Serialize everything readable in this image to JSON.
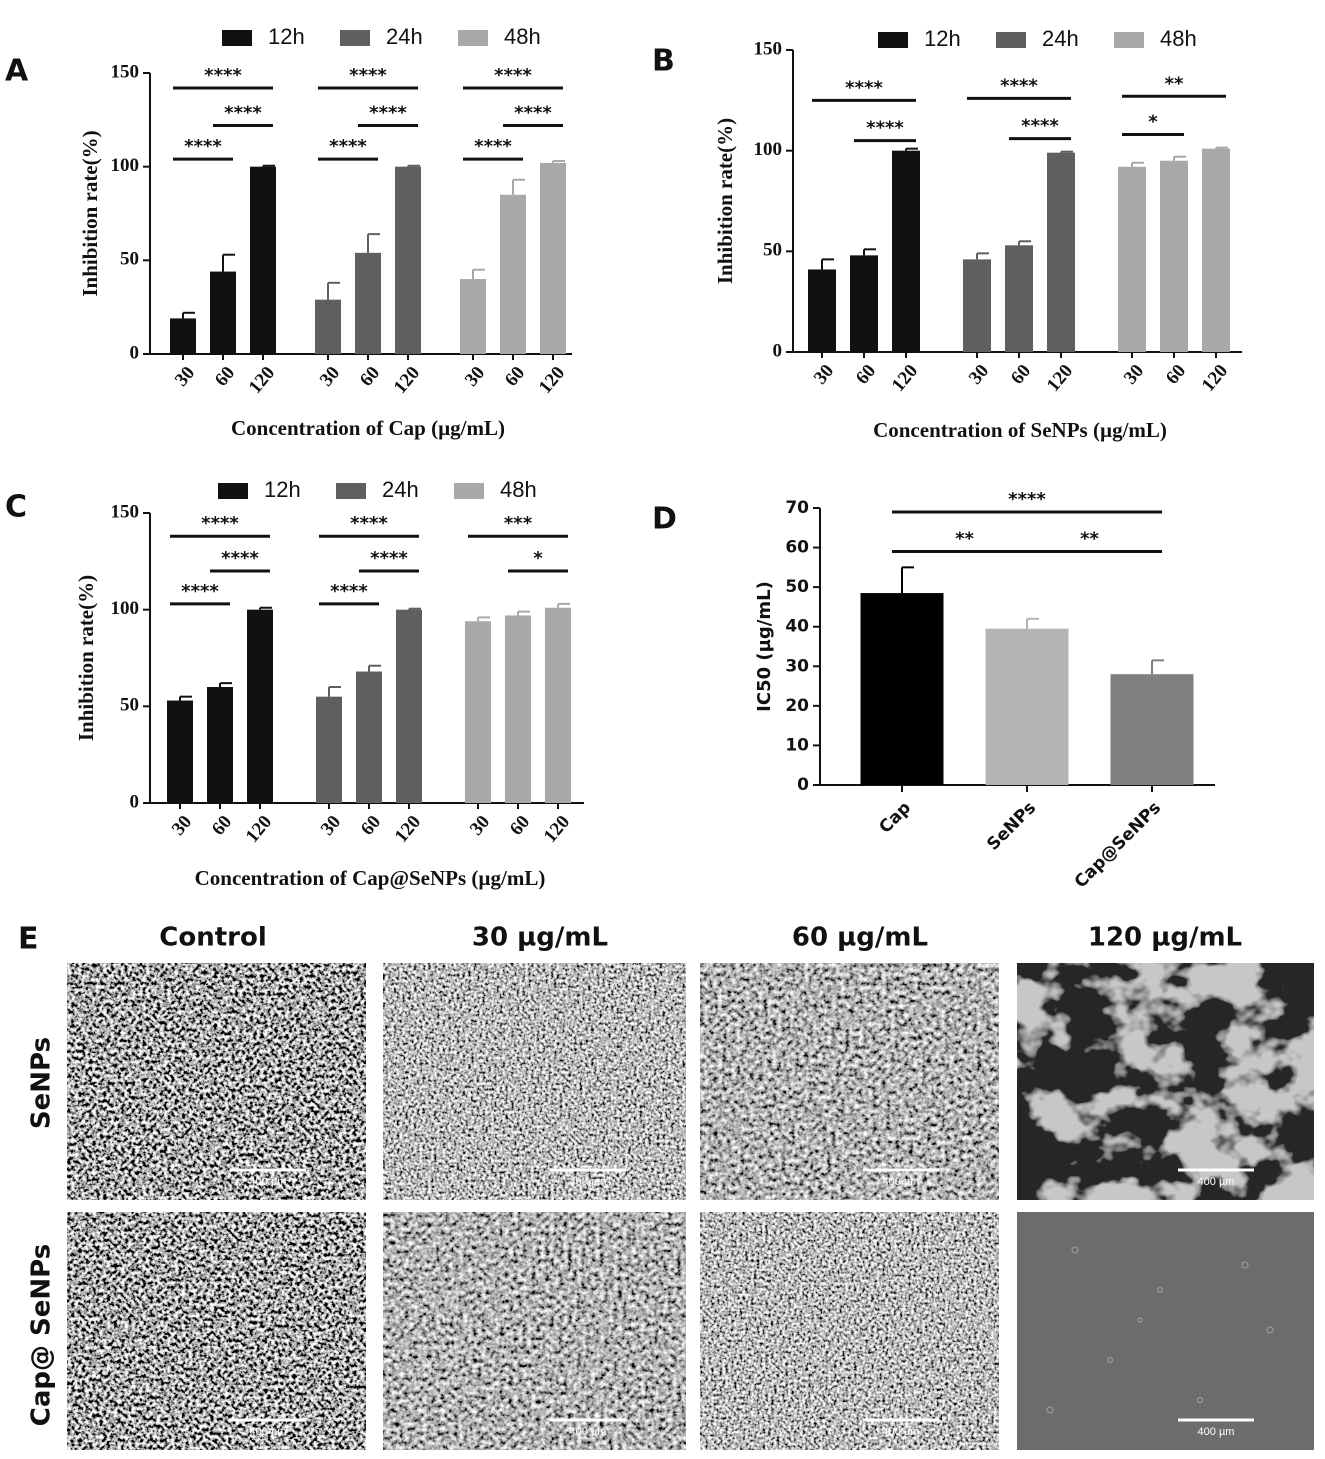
{
  "chart_data": [
    {
      "type": "bar",
      "panel": "A",
      "ylabel": "Inhibition rate(%)",
      "xlabel": "Concentration of Cap (µg/mL)",
      "categories": [
        "30",
        "60",
        "120"
      ],
      "ylim": [
        0,
        150
      ],
      "yticks": [
        0,
        50,
        100,
        150
      ],
      "series": [
        {
          "name": "12h",
          "color": "#111111",
          "values": [
            19,
            44,
            100
          ],
          "errors": [
            3,
            9,
            0.5
          ]
        },
        {
          "name": "24h",
          "color": "#5f5f5f",
          "values": [
            29,
            54,
            100
          ],
          "errors": [
            9,
            10,
            0.5
          ]
        },
        {
          "name": "48h",
          "color": "#a8a8a8",
          "values": [
            40,
            85,
            102
          ],
          "errors": [
            5,
            8,
            1
          ]
        }
      ],
      "annotations": [
        {
          "text": "****",
          "series": 0,
          "from": 0,
          "to": 2,
          "y": 142
        },
        {
          "text": "****",
          "series": 0,
          "from": 1,
          "to": 2,
          "y": 122
        },
        {
          "text": "****",
          "series": 0,
          "from": 0,
          "to": 1,
          "y": 104
        },
        {
          "text": "****",
          "series": 1,
          "from": 0,
          "to": 2,
          "y": 142
        },
        {
          "text": "****",
          "series": 1,
          "from": 1,
          "to": 2,
          "y": 122
        },
        {
          "text": "****",
          "series": 1,
          "from": 0,
          "to": 1,
          "y": 104
        },
        {
          "text": "****",
          "series": 2,
          "from": 0,
          "to": 2,
          "y": 142
        },
        {
          "text": "****",
          "series": 2,
          "from": 1,
          "to": 2,
          "y": 122
        },
        {
          "text": "****",
          "series": 2,
          "from": 0,
          "to": 1,
          "y": 104
        }
      ]
    },
    {
      "type": "bar",
      "panel": "B",
      "ylabel": "Inhibition rate(%)",
      "xlabel": "Concentration of SeNPs (µg/mL)",
      "categories": [
        "30",
        "60",
        "120"
      ],
      "ylim": [
        0,
        150
      ],
      "yticks": [
        0,
        50,
        100,
        150
      ],
      "series": [
        {
          "name": "12h",
          "color": "#111111",
          "values": [
            41,
            48,
            100
          ],
          "errors": [
            5,
            3,
            1
          ]
        },
        {
          "name": "24h",
          "color": "#5f5f5f",
          "values": [
            46,
            53,
            99
          ],
          "errors": [
            3,
            2,
            0.5
          ]
        },
        {
          "name": "48h",
          "color": "#a8a8a8",
          "values": [
            92,
            95,
            101
          ],
          "errors": [
            2,
            2,
            0.5
          ]
        }
      ],
      "annotations": [
        {
          "text": "****",
          "series": 0,
          "from": 0,
          "to": 2,
          "y": 125
        },
        {
          "text": "****",
          "series": 0,
          "from": 1,
          "to": 2,
          "y": 105
        },
        {
          "text": "****",
          "series": 1,
          "from": 0,
          "to": 2,
          "y": 126
        },
        {
          "text": "****",
          "series": 1,
          "from": 1,
          "to": 2,
          "y": 106
        },
        {
          "text": "**",
          "series": 2,
          "from": 0,
          "to": 2,
          "y": 127
        },
        {
          "text": "*",
          "series": 2,
          "from": 0,
          "to": 1,
          "y": 108
        }
      ]
    },
    {
      "type": "bar",
      "panel": "C",
      "ylabel": "Inhibition rate(%)",
      "xlabel": "Concentration of Cap@SeNPs (µg/mL)",
      "categories": [
        "30",
        "60",
        "120"
      ],
      "ylim": [
        0,
        150
      ],
      "yticks": [
        0,
        50,
        100,
        150
      ],
      "series": [
        {
          "name": "12h",
          "color": "#111111",
          "values": [
            53,
            60,
            100
          ],
          "errors": [
            2,
            2,
            1
          ]
        },
        {
          "name": "24h",
          "color": "#5f5f5f",
          "values": [
            55,
            68,
            100
          ],
          "errors": [
            5,
            3,
            0.5
          ]
        },
        {
          "name": "48h",
          "color": "#a8a8a8",
          "values": [
            94,
            97,
            101
          ],
          "errors": [
            2,
            2,
            2
          ]
        }
      ],
      "annotations": [
        {
          "text": "****",
          "series": 0,
          "from": 0,
          "to": 2,
          "y": 138
        },
        {
          "text": "****",
          "series": 0,
          "from": 1,
          "to": 2,
          "y": 120
        },
        {
          "text": "****",
          "series": 0,
          "from": 0,
          "to": 1,
          "y": 103
        },
        {
          "text": "****",
          "series": 1,
          "from": 0,
          "to": 2,
          "y": 138
        },
        {
          "text": "****",
          "series": 1,
          "from": 1,
          "to": 2,
          "y": 120
        },
        {
          "text": "****",
          "series": 1,
          "from": 0,
          "to": 1,
          "y": 103
        },
        {
          "text": "***",
          "series": 2,
          "from": 0,
          "to": 2,
          "y": 138
        },
        {
          "text": "*",
          "series": 2,
          "from": 1,
          "to": 2,
          "y": 120
        }
      ]
    },
    {
      "type": "bar",
      "panel": "D",
      "ylabel": "IC50 (µg/mL)",
      "categories": [
        "Cap",
        "SeNPs",
        "Cap@SeNPs"
      ],
      "values": [
        48.5,
        39.5,
        28
      ],
      "errors": [
        6.5,
        2.5,
        3.5
      ],
      "colors": [
        "#000000",
        "#b3b3b3",
        "#7f7f7f"
      ],
      "ylim": [
        0,
        70
      ],
      "yticks": [
        0,
        10,
        20,
        30,
        40,
        50,
        60,
        70
      ],
      "annotations": [
        {
          "text": "****",
          "from": 0,
          "to": 2,
          "y": 69
        },
        {
          "text": "**",
          "from": 0,
          "to": 1,
          "y": 59
        },
        {
          "text": "**",
          "from": 1,
          "to": 2,
          "y": 59
        }
      ]
    }
  ],
  "micrographs": {
    "panel": "E",
    "columns": [
      "Control",
      "30 µg/mL",
      "60 µg/mL",
      "120 µg/mL"
    ],
    "rows": [
      "SeNPs",
      "Cap@ SeNPs"
    ],
    "scale_bar": "400 µm"
  }
}
